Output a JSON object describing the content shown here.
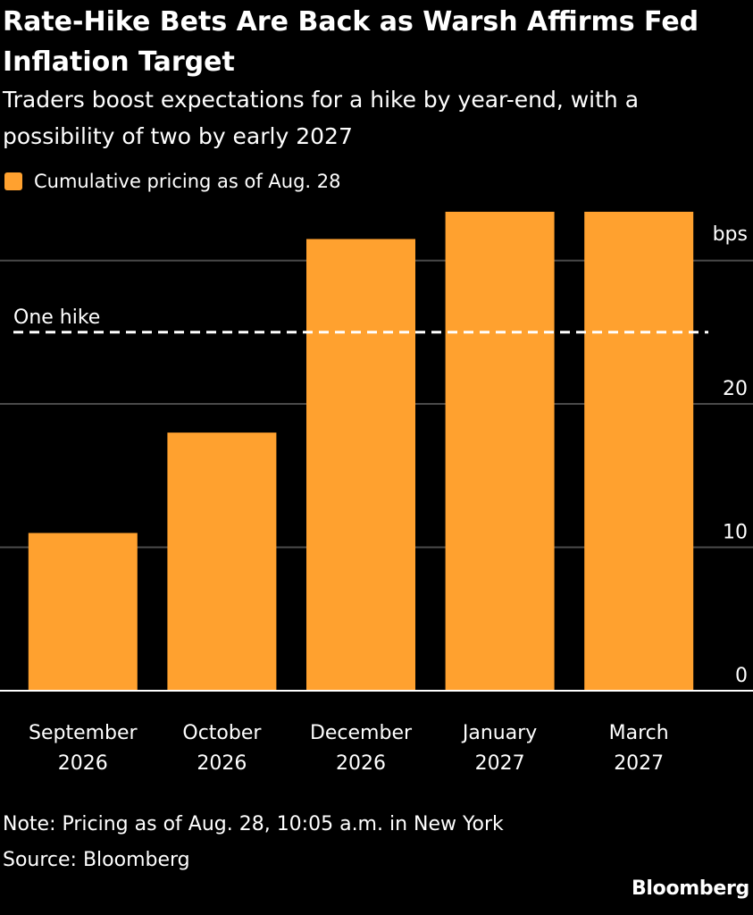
{
  "title": "Rate-Hike Bets Are Back as Warsh Affirms Fed Inflation Target",
  "subtitle": "Traders boost expectations for a hike by year-end, with a possibility of two by early 2027",
  "legend": {
    "label": "Cumulative pricing as of Aug. 28"
  },
  "colors": {
    "bar": "#ffa12f",
    "background": "#000000",
    "gridline": "#4a4a4a",
    "text": "#ffffff"
  },
  "chart_data": {
    "type": "bar",
    "categories": [
      [
        "September",
        "2026"
      ],
      [
        "October",
        "2026"
      ],
      [
        "December",
        "2026"
      ],
      [
        "January",
        "2027"
      ],
      [
        "March",
        "2027"
      ]
    ],
    "series": [
      {
        "name": "Cumulative pricing as of Aug. 28",
        "values": [
          11,
          18,
          31.5,
          33.4,
          33.4
        ]
      }
    ],
    "ylabel": "bps",
    "yticks": [
      0,
      10,
      20
    ],
    "ylim": [
      0,
      33.4
    ],
    "grid": true,
    "legend_position": "top-left",
    "reference_line": {
      "label": "One hike",
      "value": 25,
      "style": "dashed"
    }
  },
  "footer": {
    "note": "Note: Pricing as of Aug. 28, 10:05 a.m. in New York",
    "source": "Source: Bloomberg",
    "logo": "Bloomberg"
  }
}
